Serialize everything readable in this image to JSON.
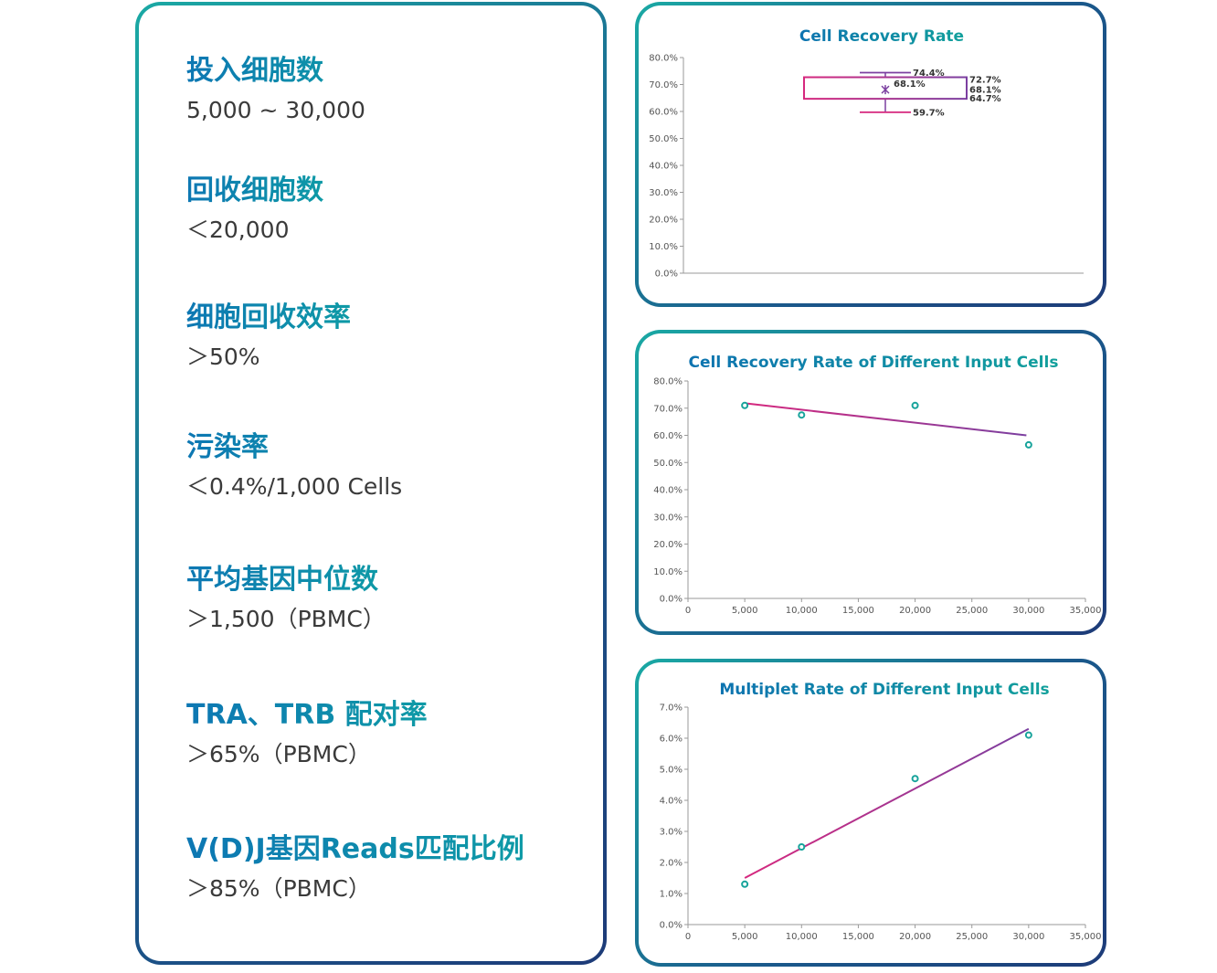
{
  "specs": [
    {
      "label": "投入细胞数",
      "value": "5,000 ~ 30,000"
    },
    {
      "label": "回收细胞数",
      "value": "＜20,000"
    },
    {
      "label": "细胞回收效率",
      "value": "＞50%"
    },
    {
      "label": "污染率",
      "value": "＜0.4%/1,000 Cells"
    },
    {
      "label": "平均基因中位数",
      "value": "＞1,500（PBMC）"
    },
    {
      "label": "TRA、TRB 配对率",
      "value": "＞65%（PBMC）"
    },
    {
      "label": "V(D)J基因Reads匹配比例",
      "value": "＞85%（PBMC）"
    }
  ],
  "colors": {
    "teal": "#1aa59f",
    "blue": "#1a5a8c",
    "magenta": "#d6287e",
    "purple": "#7b3fa0",
    "point": "#17a39b"
  },
  "chart_data": [
    {
      "type": "box",
      "title": "Cell Recovery Rate",
      "ylim": [
        0,
        80
      ],
      "yticks": [
        "0.0%",
        "10.0%",
        "20.0%",
        "30.0%",
        "40.0%",
        "50.0%",
        "60.0%",
        "70.0%",
        "80.0%"
      ],
      "box": {
        "max": 74.4,
        "q3": 72.7,
        "median": 68.1,
        "mean": 68.1,
        "q1": 64.7,
        "min": 59.7
      },
      "labels": {
        "max": "74.4%",
        "q3": "72.7%",
        "median": "68.1%",
        "mean": "68.1%",
        "q1": "64.7%",
        "min": "59.7%"
      }
    },
    {
      "type": "scatter",
      "title": "Cell Recovery Rate of Different Input Cells",
      "xlim": [
        0,
        35000
      ],
      "ylim": [
        0,
        80
      ],
      "xticks": [
        "0",
        "5,000",
        "10,000",
        "15,000",
        "20,000",
        "25,000",
        "30,000",
        "35,000"
      ],
      "yticks": [
        "0.0%",
        "10.0%",
        "20.0%",
        "30.0%",
        "40.0%",
        "50.0%",
        "60.0%",
        "70.0%",
        "80.0%"
      ],
      "points": [
        [
          5000,
          71.0
        ],
        [
          10000,
          67.5
        ],
        [
          20000,
          71.0
        ],
        [
          30000,
          56.5
        ]
      ],
      "trendline": [
        [
          5000,
          71.8
        ],
        [
          29800,
          60.0
        ]
      ]
    },
    {
      "type": "scatter",
      "title": "Multiplet Rate of Different Input Cells",
      "xlim": [
        0,
        35000
      ],
      "ylim": [
        0,
        7
      ],
      "xticks": [
        "0",
        "5,000",
        "10,000",
        "15,000",
        "20,000",
        "25,000",
        "30,000",
        "35,000"
      ],
      "yticks": [
        "0.0%",
        "1.0%",
        "2.0%",
        "3.0%",
        "4.0%",
        "5.0%",
        "6.0%",
        "7.0%"
      ],
      "points": [
        [
          5000,
          1.3
        ],
        [
          10000,
          2.5
        ],
        [
          20000,
          4.7
        ],
        [
          30000,
          6.1
        ]
      ],
      "trendline": [
        [
          5000,
          1.5
        ],
        [
          30000,
          6.3
        ]
      ]
    }
  ]
}
